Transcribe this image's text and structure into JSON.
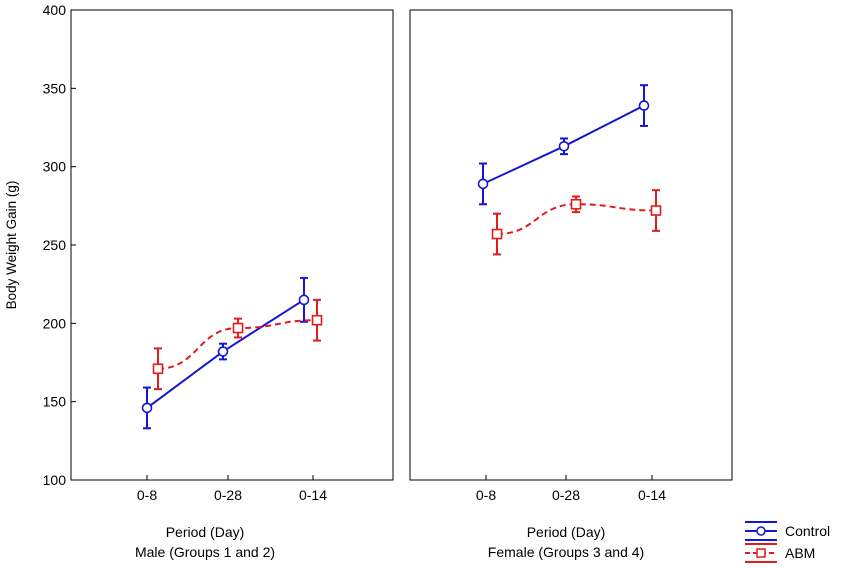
{
  "chart_data": [
    {
      "type": "line",
      "panel_label": "Male (Groups 1 and 2)",
      "xlabel": "Period (Day)",
      "ylabel": "Body Weight Gain (g)",
      "categories": [
        "0-8",
        "0-28",
        "0-14"
      ],
      "ylim": [
        100,
        400
      ],
      "yticks": [
        "100",
        "150",
        "200",
        "250",
        "300",
        "350",
        "400"
      ],
      "grid": false,
      "series": [
        {
          "name": "Control",
          "values": [
            146,
            182,
            215
          ],
          "error": [
            13,
            5,
            14
          ],
          "color": "#1515d6",
          "marker": "circle",
          "dash": "solid"
        },
        {
          "name": "ABM",
          "values": [
            171,
            197,
            202
          ],
          "error": [
            13,
            6,
            13
          ],
          "color": "#e01c1c",
          "marker": "square",
          "dash": "dashed"
        }
      ]
    },
    {
      "type": "line",
      "panel_label": "Female (Groups 3 and 4)",
      "xlabel": "Period (Day)",
      "ylabel": "",
      "categories": [
        "0-8",
        "0-28",
        "0-14"
      ],
      "ylim": [
        100,
        400
      ],
      "grid": false,
      "series": [
        {
          "name": "Control",
          "values": [
            289,
            313,
            339
          ],
          "error": [
            13,
            5,
            13
          ],
          "color": "#1515d6",
          "marker": "circle",
          "dash": "solid"
        },
        {
          "name": "ABM",
          "values": [
            257,
            276,
            272
          ],
          "error": [
            13,
            5,
            13
          ],
          "color": "#e01c1c",
          "marker": "square",
          "dash": "dashed"
        }
      ]
    }
  ],
  "legend": {
    "placement": "bottom-right",
    "items": [
      {
        "label": "Control",
        "color": "#1515d6",
        "marker": "circle",
        "dash": "solid"
      },
      {
        "label": "ABM",
        "color": "#e01c1c",
        "marker": "square",
        "dash": "dashed"
      }
    ]
  }
}
